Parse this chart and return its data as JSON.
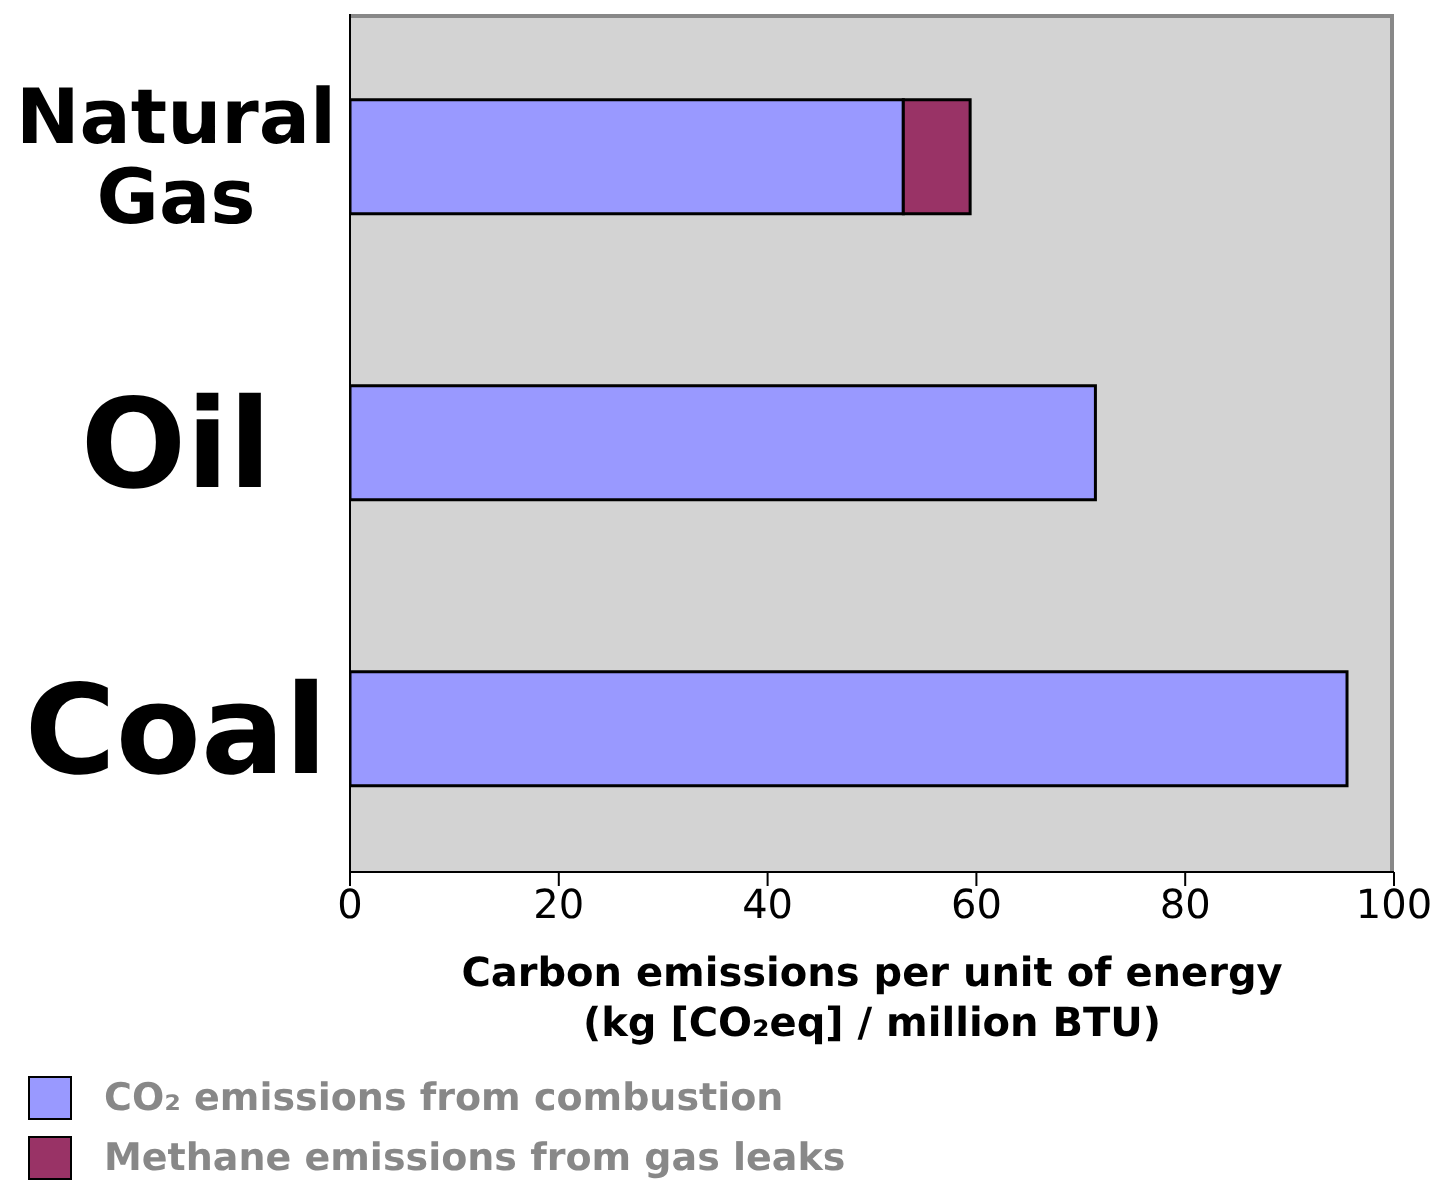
{
  "chart_data": {
    "type": "bar",
    "orientation": "horizontal",
    "stacked": true,
    "categories": [
      "Natural Gas",
      "Oil",
      "Coal"
    ],
    "series": [
      {
        "name": "CO₂ emissions from combustion",
        "color": "#9999ff",
        "values": [
          53.0,
          71.4,
          95.5
        ]
      },
      {
        "name": "Methane emissions from gas leaks",
        "color": "#993366",
        "values": [
          6.4,
          null,
          null
        ]
      }
    ],
    "xlabel": "Carbon emissions per unit of energy\n(kg [CO₂eq] / million BTU)",
    "xlim": [
      0,
      100
    ],
    "xticks": [
      0,
      20,
      40,
      60,
      80,
      100
    ],
    "legend": "bottom left"
  }
}
